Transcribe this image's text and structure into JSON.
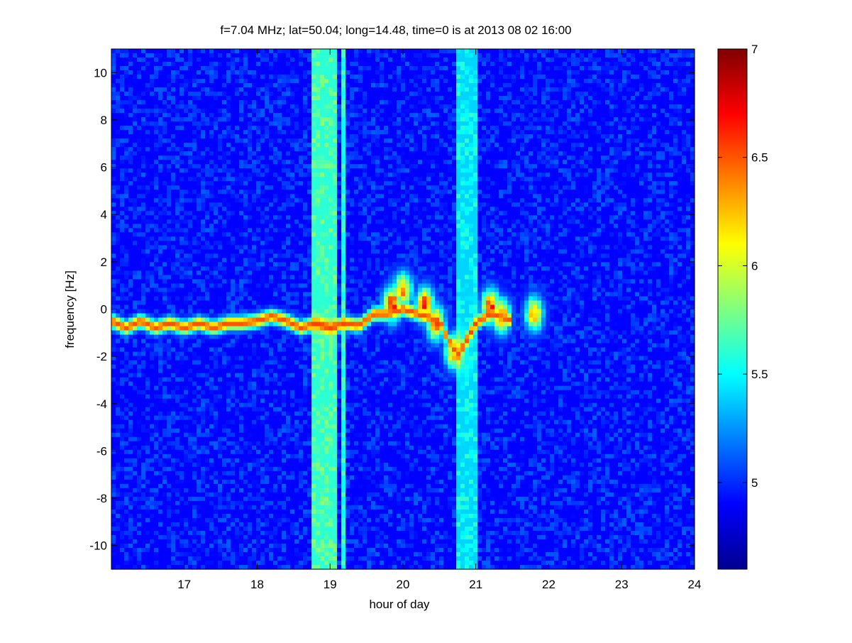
{
  "chart_data": {
    "type": "heatmap",
    "title": "f=7.04 MHz;  lat=50.04; long=14.48, time=0 is at 2013 08 02 16:00",
    "xlabel": "hour of day",
    "ylabel": "frequency [Hz]",
    "xlim": [
      16.0,
      24.0
    ],
    "ylim": [
      -11.0,
      11.0
    ],
    "x_ticks": [
      17,
      18,
      19,
      20,
      21,
      22,
      23,
      24
    ],
    "y_ticks": [
      -10,
      -8,
      -6,
      -4,
      -2,
      0,
      2,
      4,
      6,
      8,
      10
    ],
    "colorbar": {
      "range": [
        4.6,
        7.0
      ],
      "ticks": [
        5,
        5.5,
        6,
        6.5,
        7
      ],
      "colormap": "jet"
    },
    "grid": false,
    "background_level": 4.9,
    "broadband_noise_bands": [
      {
        "x_start": 18.75,
        "x_end": 19.1,
        "level": 5.6
      },
      {
        "x_start": 19.18,
        "x_end": 19.22,
        "level": 5.5
      },
      {
        "x_start": 20.75,
        "x_end": 21.05,
        "level": 5.4
      }
    ],
    "carrier_trace": [
      {
        "hour": 16.0,
        "freq": -0.5
      },
      {
        "hour": 16.2,
        "freq": -0.8
      },
      {
        "hour": 16.4,
        "freq": -0.5
      },
      {
        "hour": 16.6,
        "freq": -0.8
      },
      {
        "hour": 16.8,
        "freq": -0.6
      },
      {
        "hour": 17.0,
        "freq": -0.8
      },
      {
        "hour": 17.2,
        "freq": -0.6
      },
      {
        "hour": 17.4,
        "freq": -0.8
      },
      {
        "hour": 17.6,
        "freq": -0.6
      },
      {
        "hour": 17.8,
        "freq": -0.6
      },
      {
        "hour": 18.0,
        "freq": -0.5
      },
      {
        "hour": 18.2,
        "freq": -0.3
      },
      {
        "hour": 18.4,
        "freq": -0.5
      },
      {
        "hour": 18.6,
        "freq": -0.8
      },
      {
        "hour": 18.8,
        "freq": -0.6
      },
      {
        "hour": 19.0,
        "freq": -0.8
      },
      {
        "hour": 19.2,
        "freq": -0.6
      },
      {
        "hour": 19.4,
        "freq": -0.7
      },
      {
        "hour": 19.6,
        "freq": -0.2
      },
      {
        "hour": 19.8,
        "freq": -0.2
      },
      {
        "hour": 20.0,
        "freq": 0.0
      },
      {
        "hour": 20.2,
        "freq": -0.2
      },
      {
        "hour": 20.4,
        "freq": -0.4
      },
      {
        "hour": 20.5,
        "freq": -0.5
      },
      {
        "hour": 20.6,
        "freq": -1.2
      },
      {
        "hour": 20.75,
        "freq": -2.0
      },
      {
        "hour": 21.0,
        "freq": -0.6
      },
      {
        "hour": 21.2,
        "freq": -0.2
      },
      {
        "hour": 21.5,
        "freq": -0.5
      }
    ],
    "enhancement_patches": [
      {
        "hour": 19.85,
        "freq": 0.2,
        "level": 6.9
      },
      {
        "hour": 20.0,
        "freq": 0.8,
        "level": 6.6
      },
      {
        "hour": 20.3,
        "freq": 0.2,
        "level": 6.8
      },
      {
        "hour": 20.45,
        "freq": -0.6,
        "level": 6.7
      },
      {
        "hour": 20.7,
        "freq": -1.8,
        "level": 6.6
      },
      {
        "hour": 21.2,
        "freq": 0.1,
        "level": 6.8
      },
      {
        "hour": 21.35,
        "freq": -0.3,
        "level": 6.7
      },
      {
        "hour": 21.8,
        "freq": -0.2,
        "level": 6.5
      }
    ]
  }
}
